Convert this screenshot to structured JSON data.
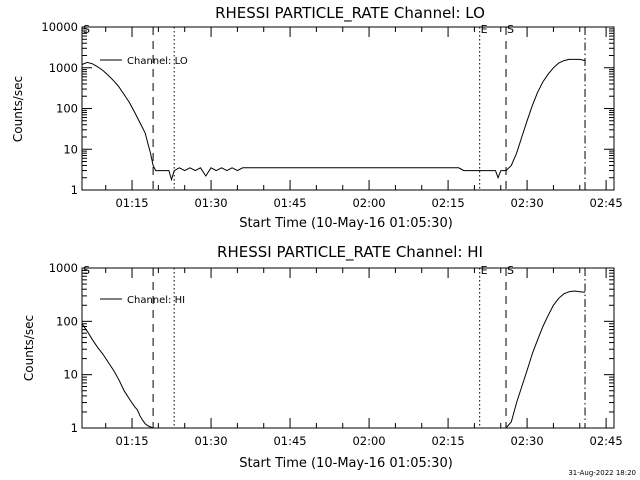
{
  "footer": {
    "timestamp": "31-Aug-2022 18:20"
  },
  "chart_data": [
    {
      "type": "line",
      "title": "RHESSI PARTICLE_RATE Channel: LO",
      "xlabel": "Start Time (10-May-16 01:05:30)",
      "ylabel": "Counts/sec",
      "y_scale": "log",
      "xlim": [
        "01:05:30",
        "02:46:30"
      ],
      "ylim": [
        1,
        10000
      ],
      "x_ticks": [
        "01:15",
        "01:30",
        "01:45",
        "02:00",
        "02:15",
        "02:30",
        "02:45"
      ],
      "y_ticks": [
        "1",
        "10",
        "100",
        "1000",
        "10000"
      ],
      "legend": {
        "position": "top-left",
        "entries": [
          "Channel: LO"
        ]
      },
      "markers": [
        {
          "time": "01:05:30",
          "style": "dashed",
          "label": "S"
        },
        {
          "time": "01:19:00",
          "style": "dashed",
          "label": ""
        },
        {
          "time": "01:23:00",
          "style": "dotted",
          "label": ""
        },
        {
          "time": "02:21:00",
          "style": "dotted",
          "label": "E"
        },
        {
          "time": "02:26:00",
          "style": "dashed",
          "label": "S"
        },
        {
          "time": "02:41:00",
          "style": "dashdot",
          "label": ""
        }
      ],
      "series": [
        {
          "name": "Channel: LO",
          "x": [
            "01:05:30",
            "01:06:30",
            "01:07:30",
            "01:08:30",
            "01:09:30",
            "01:10:30",
            "01:11:30",
            "01:12:30",
            "01:13:30",
            "01:14:30",
            "01:15:30",
            "01:16:30",
            "01:17:30",
            "01:18:00",
            "01:18:30",
            "01:19:00",
            "01:19:30",
            "01:21:00",
            "01:22:00",
            "01:22:30",
            "01:23:00",
            "01:24:00",
            "01:25:00",
            "01:26:00",
            "01:27:00",
            "01:28:00",
            "01:29:00",
            "01:30:00",
            "01:31:00",
            "01:32:00",
            "01:33:00",
            "01:34:00",
            "01:35:00",
            "01:36:00",
            "01:37:00",
            "01:38:00",
            "01:39:00",
            "01:40:00",
            "01:41:00",
            "01:42:00",
            "01:43:00",
            "01:44:00",
            "01:45:00",
            "01:46:00",
            "01:47:00",
            "01:48:00",
            "01:49:00",
            "01:50:00",
            "01:51:00",
            "01:52:00",
            "01:53:00",
            "01:54:00",
            "01:55:00",
            "01:56:00",
            "01:57:00",
            "01:58:00",
            "01:59:00",
            "02:00:00",
            "02:01:00",
            "02:02:00",
            "02:03:00",
            "02:04:00",
            "02:05:00",
            "02:06:00",
            "02:07:00",
            "02:08:00",
            "02:09:00",
            "02:10:00",
            "02:11:00",
            "02:12:00",
            "02:13:00",
            "02:14:00",
            "02:15:00",
            "02:16:00",
            "02:17:00",
            "02:18:00",
            "02:19:00",
            "02:20:00",
            "02:21:00",
            "02:22:00",
            "02:23:00",
            "02:24:00",
            "02:24:30",
            "02:25:00",
            "02:26:00",
            "02:27:00",
            "02:28:00",
            "02:29:00",
            "02:30:00",
            "02:31:00",
            "02:32:00",
            "02:33:00",
            "02:34:00",
            "02:35:00",
            "02:36:00",
            "02:37:00",
            "02:38:00",
            "02:39:00",
            "02:40:00",
            "02:41:00"
          ],
          "y": [
            1200,
            1350,
            1250,
            1050,
            850,
            650,
            480,
            340,
            220,
            140,
            80,
            45,
            25,
            14,
            8,
            4,
            3,
            3,
            3,
            1.8,
            3,
            3.5,
            3,
            3.5,
            3,
            3.5,
            2.2,
            3.5,
            3,
            3.5,
            3,
            3.5,
            3,
            3.5,
            3.5,
            3.5,
            3.5,
            3.5,
            3.5,
            3.5,
            3.5,
            3.5,
            3.5,
            3.5,
            3.5,
            3.5,
            3.5,
            3.5,
            3.5,
            3.5,
            3.5,
            3.5,
            3.5,
            3.5,
            3.5,
            3.5,
            3.5,
            3.5,
            3.5,
            3.5,
            3.5,
            3.5,
            3.5,
            3.5,
            3.5,
            3.5,
            3.5,
            3.5,
            3.5,
            3.5,
            3.5,
            3.5,
            3.5,
            3.5,
            3.5,
            3,
            3,
            3,
            3,
            3,
            3,
            3,
            2,
            3,
            3,
            4,
            8,
            20,
            50,
            120,
            250,
            450,
            700,
            1000,
            1300,
            1500,
            1600,
            1600,
            1600,
            1500
          ]
        }
      ]
    },
    {
      "type": "line",
      "title": "RHESSI PARTICLE_RATE Channel: HI",
      "xlabel": "Start Time (10-May-16 01:05:30)",
      "ylabel": "Counts/sec",
      "y_scale": "log",
      "xlim": [
        "01:05:30",
        "02:46:30"
      ],
      "ylim": [
        1,
        1000
      ],
      "x_ticks": [
        "01:15",
        "01:30",
        "01:45",
        "02:00",
        "02:15",
        "02:30",
        "02:45"
      ],
      "y_ticks": [
        "1",
        "10",
        "100",
        "1000"
      ],
      "legend": {
        "position": "top-left",
        "entries": [
          "Channel: HI"
        ]
      },
      "markers": [
        {
          "time": "01:05:30",
          "style": "dashed",
          "label": "S"
        },
        {
          "time": "01:19:00",
          "style": "dashed",
          "label": ""
        },
        {
          "time": "01:23:00",
          "style": "dotted",
          "label": ""
        },
        {
          "time": "02:21:00",
          "style": "dotted",
          "label": "E"
        },
        {
          "time": "02:26:00",
          "style": "dashed",
          "label": "S"
        },
        {
          "time": "02:41:00",
          "style": "dashdot",
          "label": ""
        }
      ],
      "series": [
        {
          "name": "Channel: HI",
          "x": [
            "01:05:30",
            "01:06:30",
            "01:07:30",
            "01:08:30",
            "01:09:30",
            "01:10:30",
            "01:11:30",
            "01:12:30",
            "01:13:30",
            "01:14:30",
            "01:15:30",
            "01:16:00",
            "01:16:30",
            "01:17:00",
            "01:17:30",
            "01:18:00",
            "01:18:30",
            "01:19:00"
          ],
          "y": [
            90,
            65,
            45,
            32,
            24,
            17,
            12,
            8,
            5,
            3.5,
            2.5,
            2.2,
            1.7,
            1.4,
            1.2,
            1.1,
            1.05,
            1
          ],
          "segment": "start"
        },
        {
          "name": "Channel: HI",
          "x": [
            "02:26:00",
            "02:27:00",
            "02:28:00",
            "02:29:00",
            "02:30:00",
            "02:31:00",
            "02:32:00",
            "02:33:00",
            "02:34:00",
            "02:35:00",
            "02:36:00",
            "02:37:00",
            "02:38:00",
            "02:39:00",
            "02:40:00",
            "02:41:00"
          ],
          "y": [
            1,
            1.3,
            3,
            6,
            12,
            25,
            45,
            80,
            130,
            200,
            270,
            330,
            360,
            370,
            360,
            350
          ],
          "segment": "end"
        }
      ]
    }
  ]
}
